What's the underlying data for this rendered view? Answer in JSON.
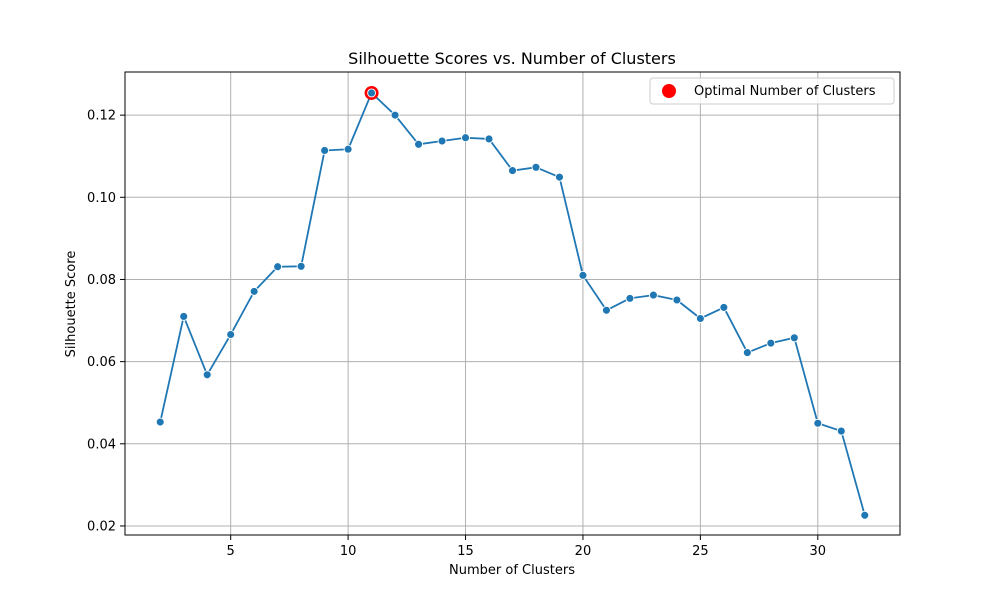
{
  "chart_data": {
    "type": "line",
    "title": "Silhouette Scores vs. Number of Clusters",
    "xlabel": "Number of Clusters",
    "ylabel": "Silhouette Score",
    "xlim": [
      0.5,
      33.5
    ],
    "ylim": [
      0.0178,
      0.1305
    ],
    "xticks": [
      5,
      10,
      15,
      20,
      25,
      30
    ],
    "yticks": [
      0.02,
      0.04,
      0.06,
      0.08,
      0.1,
      0.12
    ],
    "ytick_labels": [
      "0.02",
      "0.04",
      "0.06",
      "0.08",
      "0.10",
      "0.12"
    ],
    "grid": true,
    "legend_position": "top-right",
    "series": [
      {
        "color": "#1f77b4",
        "marker": "circle",
        "x": [
          2,
          3,
          4,
          5,
          6,
          7,
          8,
          9,
          10,
          11,
          12,
          13,
          14,
          15,
          16,
          17,
          18,
          19,
          20,
          21,
          22,
          23,
          24,
          25,
          26,
          27,
          28,
          29,
          30,
          31,
          32
        ],
        "y": [
          0.0453,
          0.071,
          0.0568,
          0.0666,
          0.0771,
          0.0831,
          0.0832,
          0.1114,
          0.1117,
          0.1254,
          0.12,
          0.1129,
          0.1137,
          0.1145,
          0.1142,
          0.1065,
          0.1073,
          0.1049,
          0.081,
          0.0725,
          0.0754,
          0.0762,
          0.075,
          0.0705,
          0.0732,
          0.0622,
          0.0645,
          0.0658,
          0.045,
          0.0431,
          0.0226
        ]
      }
    ],
    "highlight": {
      "label": "Optimal Number of Clusters",
      "x": 11,
      "y": 0.1254,
      "color": "#ff0000"
    }
  }
}
